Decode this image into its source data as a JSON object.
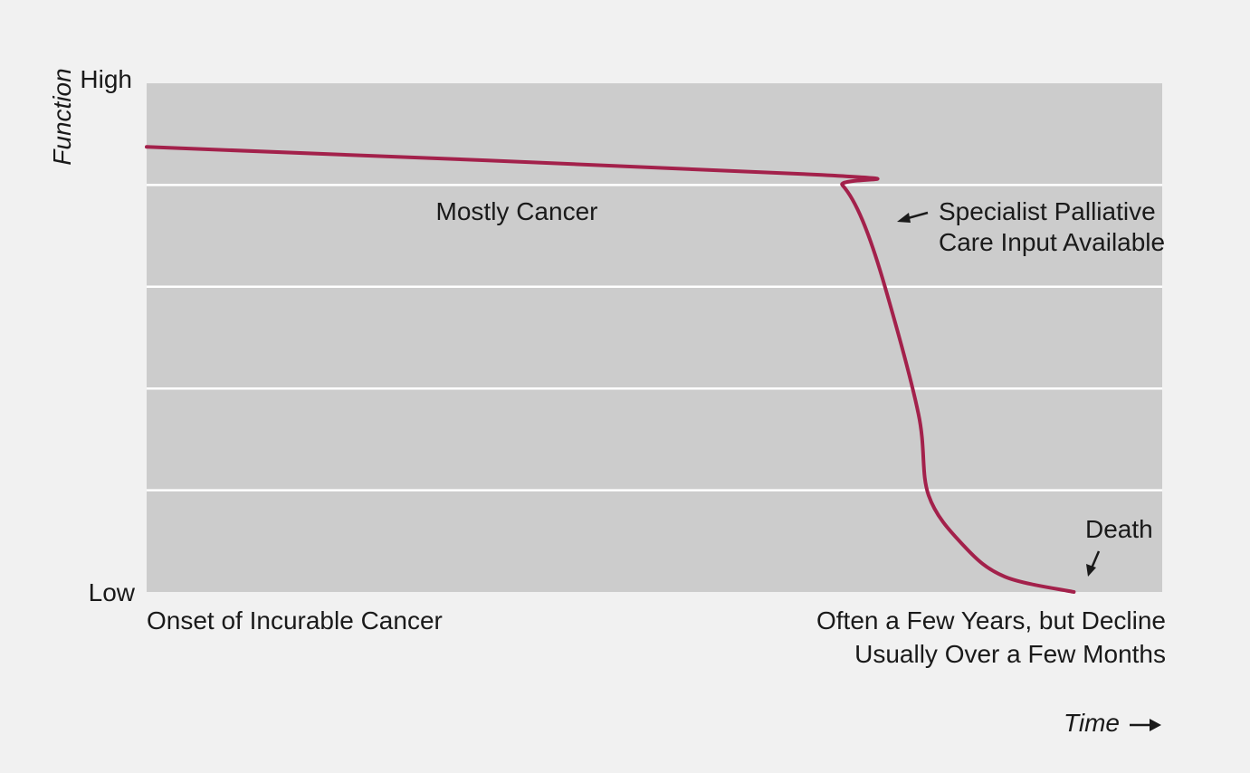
{
  "colors": {
    "background": "#f1f1f1",
    "plot_area": "#cccccc",
    "gridline": "#ffffff",
    "curve": "#a3214b",
    "text": "#1a1a1a"
  },
  "icons": {
    "annotation_arrow": "arrow-icon",
    "time_arrow": "right-arrow-icon"
  },
  "chart_data": {
    "type": "line",
    "ylabel": "Function",
    "y_ticks": {
      "high": "High",
      "low": "Low"
    },
    "x_labels": {
      "start": "Onset of Incurable Cancer",
      "end_line1": "Often a Few Years, but Decline",
      "end_line2": "Usually Over a Few Months"
    },
    "xlabel": "Time",
    "xlim": [
      0,
      100
    ],
    "ylim": [
      0,
      100
    ],
    "grid": {
      "horizontal": true,
      "levels": [
        20,
        40,
        60,
        80
      ]
    },
    "series": [
      {
        "name": "Mostly Cancer",
        "points": [
          [
            0,
            87.5
          ],
          [
            66.5,
            82
          ],
          [
            68.5,
            80
          ],
          [
            70.5,
            73
          ],
          [
            72.7,
            60
          ],
          [
            76,
            35
          ],
          [
            77,
            19
          ],
          [
            80.5,
            9
          ],
          [
            84.5,
            3
          ],
          [
            91.3,
            0
          ]
        ]
      }
    ],
    "annotations": [
      {
        "text_line1": "Specialist Palliative",
        "text_line2": "Care Input Available",
        "x": 74.5,
        "y": 74.5
      },
      {
        "text": "Death",
        "x": 92.5,
        "y": 3
      }
    ]
  }
}
